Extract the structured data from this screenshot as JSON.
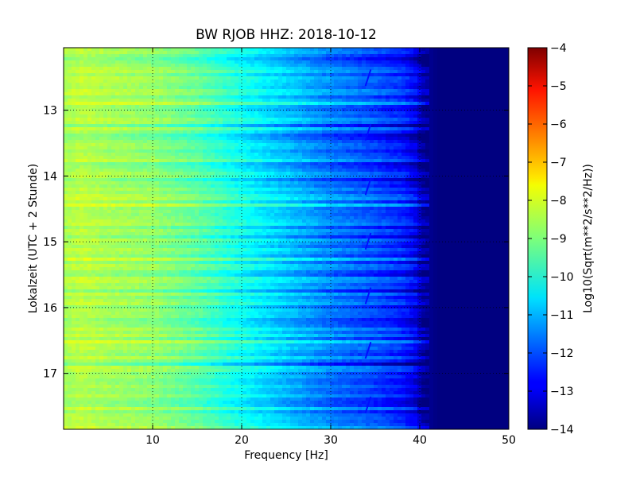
{
  "chart_data": {
    "type": "heatmap",
    "title": "BW RJOB HHZ: 2018-10-12",
    "xlabel": "Frequency [Hz]",
    "ylabel": "Lokalzeit (UTC + 2 Stunde)",
    "xlim": [
      0,
      50
    ],
    "ylim": [
      12.05,
      17.85
    ],
    "y_inverted": true,
    "grid": true,
    "colormap": "jet",
    "x_ticks": [
      10,
      20,
      30,
      40,
      50
    ],
    "x_tick_labels": [
      "10",
      "20",
      "30",
      "40",
      "50"
    ],
    "y_ticks": [
      13,
      14,
      15,
      16,
      17
    ],
    "y_tick_labels": [
      "13",
      "14",
      "15",
      "16",
      "17"
    ],
    "colorbar": {
      "label": "Log10(Sqrt(m**2/s**2/Hz))",
      "range": [
        -14,
        -4
      ],
      "ticks": [
        -14,
        -13,
        -12,
        -11,
        -10,
        -9,
        -8,
        -7,
        -6,
        -5,
        -4
      ],
      "tick_labels": [
        "−14",
        "−13",
        "−12",
        "−11",
        "−10",
        "−9",
        "−8",
        "−7",
        "−6",
        "−5",
        "−4"
      ]
    },
    "spectral_profile": {
      "frequency_hz": [
        0,
        2,
        5,
        10,
        15,
        20,
        25,
        30,
        35,
        38,
        39.5,
        40.5,
        42,
        45,
        50
      ],
      "level": [
        -8.6,
        -8.4,
        -8.6,
        -8.8,
        -9.3,
        -10.1,
        -10.8,
        -11.5,
        -12.0,
        -12.4,
        -12.9,
        -13.7,
        -14,
        -14,
        -14
      ]
    },
    "annotations": {
      "narrowband_line_hz": 34.5,
      "cutoff_hz": 40
    }
  }
}
